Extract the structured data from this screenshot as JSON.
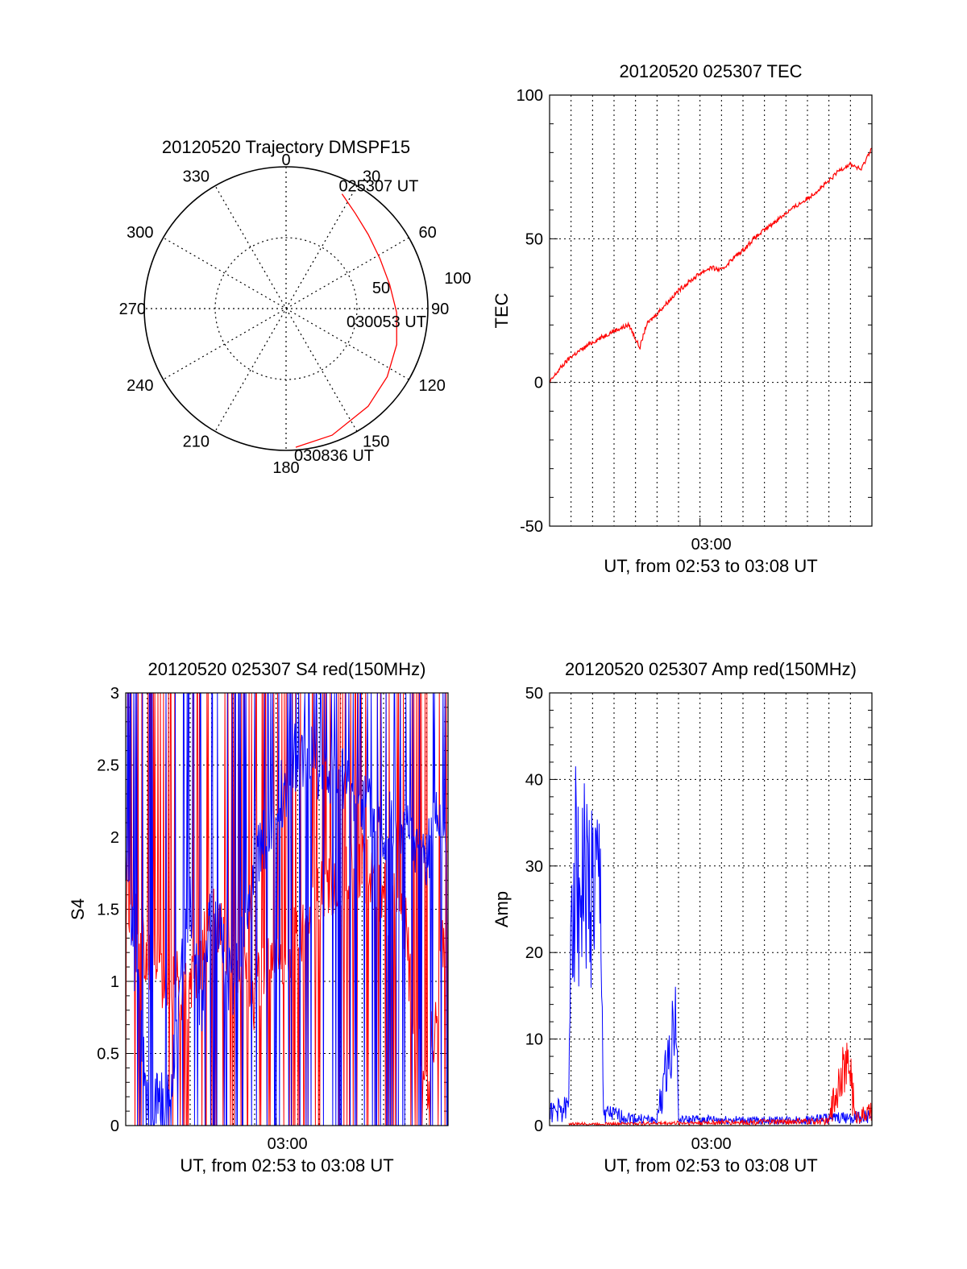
{
  "colors": {
    "primary": "#ff0000",
    "secondary": "#0000ff",
    "grid": "#000000"
  },
  "chart_data": [
    {
      "type": "polar",
      "title": "20120520 Trajectory DMSPF15",
      "azimuth_labels": [
        "0",
        "30",
        "60",
        "90",
        "120",
        "150",
        "180",
        "210",
        "240",
        "270",
        "300",
        "330"
      ],
      "radial_labels": [
        "50",
        "100"
      ],
      "radial_range": [
        0,
        100
      ],
      "annotations": [
        "025307 UT",
        "030053 UT",
        "030836 UT"
      ],
      "trajectory": [
        {
          "az": 26,
          "r": 90
        },
        {
          "az": 36,
          "r": 83
        },
        {
          "az": 48,
          "r": 78
        },
        {
          "az": 62,
          "r": 75
        },
        {
          "az": 77,
          "r": 75
        },
        {
          "az": 92,
          "r": 78
        },
        {
          "az": 108,
          "r": 82
        },
        {
          "az": 124,
          "r": 86
        },
        {
          "az": 140,
          "r": 90
        },
        {
          "az": 160,
          "r": 95
        },
        {
          "az": 176,
          "r": 98
        }
      ]
    },
    {
      "type": "line",
      "title": "20120520 025307 TEC",
      "ylabel": "TEC",
      "xlabel": "UT, from 02:53 to 03:08 UT",
      "x_tick_labels": [
        "03:00"
      ],
      "y_tick_labels": [
        "100",
        "50",
        "0",
        "-50"
      ],
      "xlim_minutes": [
        173,
        188
      ],
      "ylim": [
        -50,
        100
      ],
      "grid": true,
      "series": [
        {
          "color": "red",
          "x": [
            173.0,
            173.5,
            174.0,
            175.0,
            176.0,
            176.7,
            177.2,
            177.5,
            178.0,
            179.0,
            180.0,
            180.5,
            181.0,
            181.5,
            182.0,
            182.5,
            183.0,
            184.0,
            185.0,
            186.0,
            186.5,
            187.0,
            187.5,
            188.0
          ],
          "y": [
            0,
            5,
            9,
            14,
            18,
            20,
            12,
            20,
            24,
            32,
            38,
            40,
            39,
            43,
            46,
            50,
            53,
            59,
            64,
            70,
            74,
            76,
            74,
            82
          ]
        }
      ]
    },
    {
      "type": "line",
      "title": "20120520 025307 S4 red(150MHz)",
      "ylabel": "S4",
      "xlabel": "UT, from 02:53 to 03:08 UT",
      "x_tick_labels": [
        "03:00"
      ],
      "y_tick_labels": [
        "3",
        "2.5",
        "2",
        "1.5",
        "1",
        "0.5",
        "0"
      ],
      "xlim_minutes": [
        173,
        188
      ],
      "ylim": [
        0,
        3
      ],
      "grid": true,
      "series": [
        {
          "color": "red",
          "x": [
            173.0,
            174.0,
            175.0,
            176.0,
            177.0,
            178.0,
            179.0,
            180.0,
            181.0,
            182.0,
            183.0,
            184.0,
            185.0,
            186.0,
            186.5,
            187.0,
            187.5,
            188.0
          ],
          "y": [
            1.5,
            1.2,
            1.0,
            0.9,
            1.5,
            1.2,
            0.9,
            1.2,
            1.3,
            1.6,
            1.7,
            1.8,
            1.6,
            1.4,
            0.6,
            0.2,
            0.9,
            1.6
          ]
        },
        {
          "color": "blue",
          "x": [
            173.0,
            173.5,
            174.0,
            174.5,
            175.0,
            175.5,
            176.0,
            176.5,
            177.0,
            178.0,
            179.0,
            180.0,
            181.0,
            182.0,
            183.0,
            184.0,
            185.0,
            186.0,
            187.0,
            187.5,
            188.0
          ],
          "y": [
            1.9,
            1.0,
            0.12,
            0.12,
            0.12,
            0.9,
            1.5,
            0.8,
            1.6,
            0.9,
            1.8,
            2.2,
            2.6,
            2.5,
            2.4,
            2.3,
            2.1,
            2.0,
            1.9,
            2.1,
            1.7
          ]
        }
      ]
    },
    {
      "type": "line",
      "title": "20120520 025307 Amp red(150MHz)",
      "ylabel": "Amp",
      "xlabel": "UT, from 02:53 to 03:08 UT",
      "x_tick_labels": [
        "03:00"
      ],
      "y_tick_labels": [
        "50",
        "40",
        "30",
        "20",
        "10",
        "0"
      ],
      "xlim_minutes": [
        173,
        188
      ],
      "ylim": [
        0,
        50
      ],
      "grid": true,
      "series": [
        {
          "color": "blue",
          "x": [
            173.0,
            173.9,
            174.0,
            174.5,
            175.0,
            175.4,
            175.5,
            176.0,
            177.0,
            178.0,
            178.9,
            179.0,
            180.0,
            182.0,
            184.0,
            186.0,
            187.0,
            188.0
          ],
          "y": [
            1.5,
            2.0,
            30,
            28,
            27,
            26,
            1.5,
            1.2,
            0.8,
            0.6,
            13.0,
            0.6,
            0.7,
            0.6,
            0.6,
            0.8,
            0.9,
            1.0
          ]
        },
        {
          "color": "red",
          "x": [
            173.9,
            175.0,
            175.5,
            186.0,
            186.5,
            187.0,
            187.2,
            188.0
          ],
          "y": [
            0.2,
            0.2,
            0.2,
            0.5,
            6.0,
            7.0,
            1.0,
            1.5
          ]
        }
      ]
    }
  ]
}
